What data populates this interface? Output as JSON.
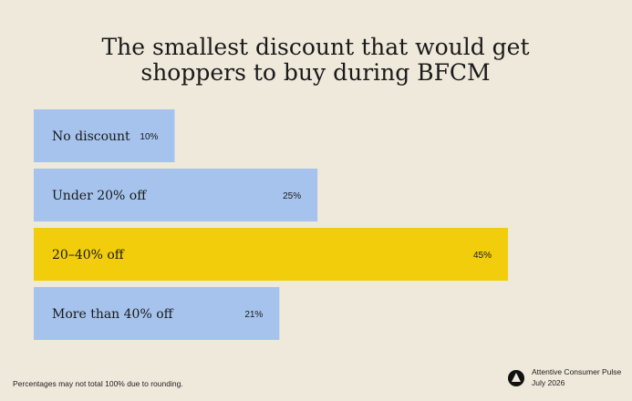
{
  "chart_data": {
    "type": "bar",
    "orientation": "horizontal",
    "title": "The smallest discount that would get shoppers to buy during BFCM",
    "categories": [
      "No discount",
      "Under 20% off",
      "20–40% off",
      "More than 40% off"
    ],
    "values": [
      10,
      25,
      45,
      21
    ],
    "value_labels": [
      "10%",
      "25%",
      "45%",
      "21%"
    ],
    "colors": [
      "#a5c3ec",
      "#a5c3ec",
      "#f2cd0c",
      "#a5c3ec"
    ]
  },
  "footnote": "Percentages may not total 100% due to rounding.",
  "brand": {
    "name": "Attentive Consumer Pulse",
    "date": "July 2026"
  }
}
